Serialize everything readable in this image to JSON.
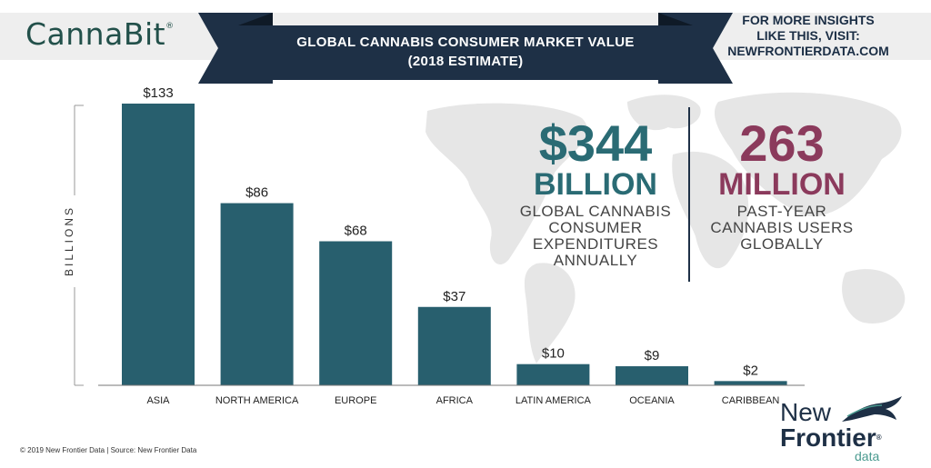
{
  "header": {
    "brand": "CannaBit",
    "brand_mark": "®",
    "title_line1": "GLOBAL CANNABIS CONSUMER MARKET VALUE",
    "title_line2": "(2018 ESTIMATE)",
    "cta_line1": "FOR MORE INSIGHTS",
    "cta_line2": "LIKE THIS, VISIT:",
    "cta_line3": "NEWFRONTIERDATA.COM"
  },
  "colors": {
    "bar": "#285f6e",
    "banner": "#1e3046",
    "banner_dark": "#0f1a27",
    "stat1": "#2a6b74",
    "stat2": "#8b3a5c",
    "map": "#e6e6e6"
  },
  "stats": {
    "left": {
      "value": "$344",
      "unit": "BILLION",
      "desc1": "GLOBAL CANNABIS",
      "desc2": "CONSUMER",
      "desc3": "EXPENDITURES",
      "desc4": "ANNUALLY"
    },
    "right": {
      "value": "263",
      "unit": "MILLION",
      "desc1": "PAST-YEAR",
      "desc2": "CANNABIS USERS",
      "desc3": "GLOBALLY"
    }
  },
  "chart_data": {
    "type": "bar",
    "categories": [
      "ASIA",
      "NORTH AMERICA",
      "EUROPE",
      "AFRICA",
      "LATIN AMERICA",
      "OCEANIA",
      "CARIBBEAN"
    ],
    "values": [
      133,
      86,
      68,
      37,
      10,
      9,
      2
    ],
    "value_labels": [
      "$133",
      "$86",
      "$68",
      "$37",
      "$10",
      "$9",
      "$2"
    ],
    "ylabel": "BILLIONS",
    "ylim": [
      0,
      133
    ],
    "grid": false,
    "title": "GLOBAL CANNABIS CONSUMER MARKET VALUE (2018 ESTIMATE)"
  },
  "footer": {
    "copyright": "© 2019  New Frontier Data | Source:  New Frontier Data"
  },
  "logo": {
    "word1": "New",
    "word2": "Frontier",
    "word3": "data",
    "mark": "®"
  }
}
